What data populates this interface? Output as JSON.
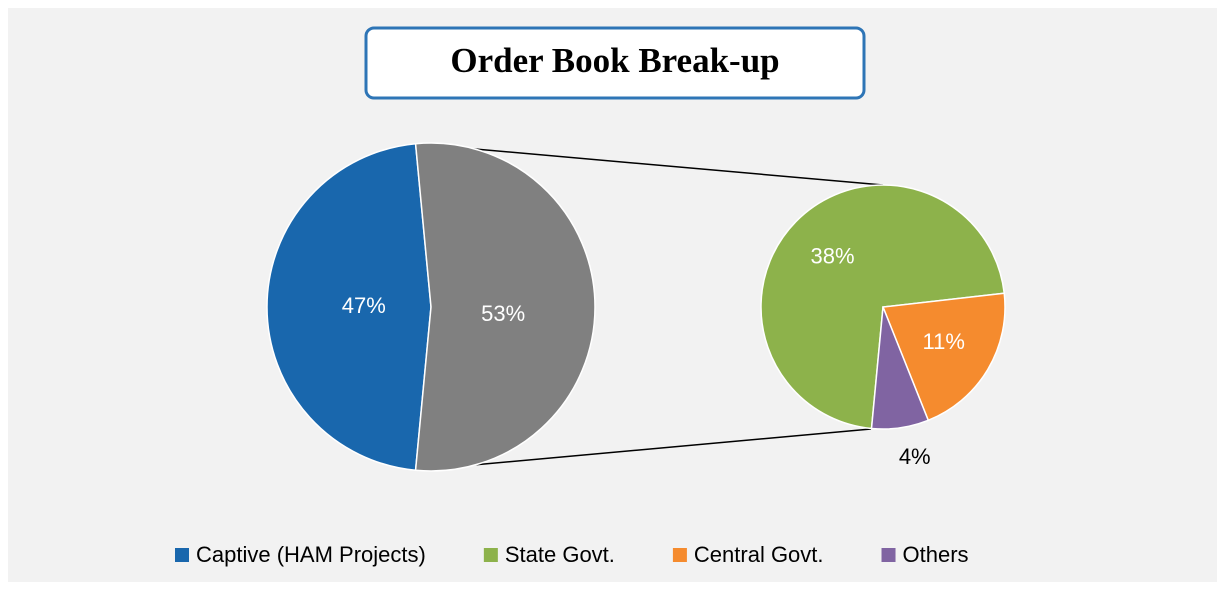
{
  "chart_data": {
    "type": "pie",
    "title": "Order Book Break-up",
    "categories": [
      "Captive (HAM Projects)",
      "State Govt.",
      "Central Govt.",
      "Others"
    ],
    "values": [
      47,
      38,
      11,
      4
    ],
    "value_labels": [
      "47%",
      "38%",
      "11%",
      "4%"
    ],
    "colors": [
      "#1967ad",
      "#8db24b",
      "#f58b2e",
      "#8064a2"
    ],
    "group_value": 53,
    "group_label": "53%",
    "group_color": "#808080",
    "legend": "bottom"
  }
}
